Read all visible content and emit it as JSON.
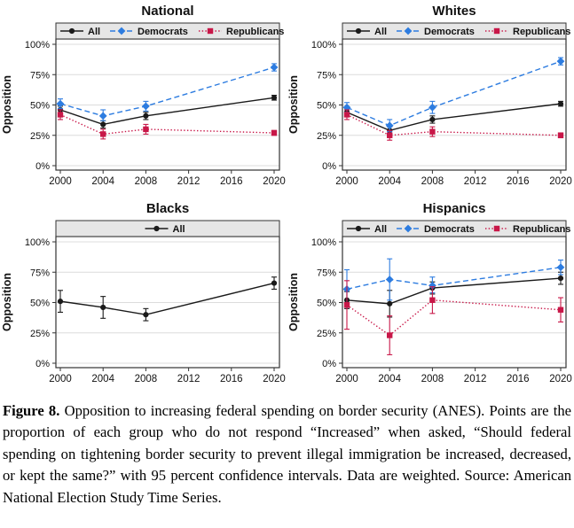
{
  "figure": {
    "caption_label": "Figure 8.",
    "caption_text": "Opposition to increasing federal spending on border security (ANES). Points are the proportion of each group who do not respond “Increased” when asked, “Should federal spending on tightening border security to prevent illegal immigration be increased, decreased, or kept the same?” with 95 percent confidence intervals. Data are weighted. Source: American National Election Study Time Series."
  },
  "colors": {
    "all": "#1a1a1a",
    "democrats": "#2d7ce0",
    "republicans": "#c81748",
    "legend_bg": "#e6e6e6",
    "grid": "#dcdcdc",
    "axis": "#333333"
  },
  "chart_data": [
    {
      "type": "line",
      "title": "National",
      "ylabel": "Opposition",
      "ylim": [
        0,
        100
      ],
      "grid": true,
      "legend_position": "top",
      "x": [
        2000,
        2004,
        2008,
        2020
      ],
      "xticks": [
        2000,
        2004,
        2008,
        2012,
        2016,
        2020
      ],
      "yticks": [
        0,
        25,
        50,
        75,
        100
      ],
      "ytick_labels": [
        "0%",
        "25%",
        "50%",
        "75%",
        "100%"
      ],
      "series": [
        {
          "name": "All",
          "key": "all",
          "marker": "circle",
          "line": "solid",
          "values": [
            46,
            34,
            41,
            56
          ],
          "ci_low": [
            43,
            31,
            38,
            54
          ],
          "ci_high": [
            49,
            37,
            44,
            58
          ]
        },
        {
          "name": "Democrats",
          "key": "democrats",
          "marker": "diamond",
          "line": "dashed",
          "values": [
            51,
            41,
            49,
            81
          ],
          "ci_low": [
            47,
            37,
            45,
            78
          ],
          "ci_high": [
            55,
            46,
            53,
            84
          ]
        },
        {
          "name": "Republicans",
          "key": "republicans",
          "marker": "square",
          "line": "dotted",
          "values": [
            42,
            26,
            30,
            27
          ],
          "ci_low": [
            38,
            22,
            26,
            25
          ],
          "ci_high": [
            46,
            30,
            34,
            29
          ]
        }
      ]
    },
    {
      "type": "line",
      "title": "Whites",
      "ylabel": "Opposition",
      "ylim": [
        0,
        100
      ],
      "grid": true,
      "legend_position": "top",
      "x": [
        2000,
        2004,
        2008,
        2020
      ],
      "xticks": [
        2000,
        2004,
        2008,
        2012,
        2016,
        2020
      ],
      "yticks": [
        0,
        25,
        50,
        75,
        100
      ],
      "ytick_labels": [
        "0%",
        "25%",
        "50%",
        "75%",
        "100%"
      ],
      "series": [
        {
          "name": "All",
          "key": "all",
          "marker": "circle",
          "line": "solid",
          "values": [
            44,
            29,
            38,
            51
          ],
          "ci_low": [
            41,
            26,
            35,
            49
          ],
          "ci_high": [
            47,
            32,
            41,
            53
          ]
        },
        {
          "name": "Democrats",
          "key": "democrats",
          "marker": "diamond",
          "line": "dashed",
          "values": [
            48,
            33,
            48,
            86
          ],
          "ci_low": [
            44,
            28,
            43,
            83
          ],
          "ci_high": [
            52,
            38,
            53,
            89
          ]
        },
        {
          "name": "Republicans",
          "key": "republicans",
          "marker": "square",
          "line": "dotted",
          "values": [
            42,
            25,
            28,
            25
          ],
          "ci_low": [
            38,
            21,
            24,
            23
          ],
          "ci_high": [
            46,
            29,
            32,
            27
          ]
        }
      ]
    },
    {
      "type": "line",
      "title": "Blacks",
      "ylabel": "Opposition",
      "ylim": [
        0,
        100
      ],
      "grid": true,
      "legend_position": "top",
      "x": [
        2000,
        2004,
        2008,
        2020
      ],
      "xticks": [
        2000,
        2004,
        2008,
        2012,
        2016,
        2020
      ],
      "yticks": [
        0,
        25,
        50,
        75,
        100
      ],
      "ytick_labels": [
        "0%",
        "25%",
        "50%",
        "75%",
        "100%"
      ],
      "series": [
        {
          "name": "All",
          "key": "all",
          "marker": "circle",
          "line": "solid",
          "values": [
            51,
            46,
            40,
            66
          ],
          "ci_low": [
            42,
            37,
            35,
            61
          ],
          "ci_high": [
            60,
            55,
            45,
            71
          ]
        }
      ]
    },
    {
      "type": "line",
      "title": "Hispanics",
      "ylabel": "Opposition",
      "ylim": [
        0,
        100
      ],
      "grid": true,
      "legend_position": "top",
      "x": [
        2000,
        2004,
        2008,
        2020
      ],
      "xticks": [
        2000,
        2004,
        2008,
        2012,
        2016,
        2020
      ],
      "yticks": [
        0,
        25,
        50,
        75,
        100
      ],
      "ytick_labels": [
        "0%",
        "25%",
        "50%",
        "75%",
        "100%"
      ],
      "series": [
        {
          "name": "All",
          "key": "all",
          "marker": "circle",
          "line": "solid",
          "values": [
            52,
            49,
            62,
            70
          ],
          "ci_low": [
            45,
            38,
            57,
            65
          ],
          "ci_high": [
            59,
            60,
            67,
            75
          ]
        },
        {
          "name": "Democrats",
          "key": "democrats",
          "marker": "diamond",
          "line": "dashed",
          "values": [
            61,
            69,
            64,
            79
          ],
          "ci_low": [
            46,
            52,
            58,
            73
          ],
          "ci_high": [
            77,
            86,
            71,
            85
          ]
        },
        {
          "name": "Republicans",
          "key": "republicans",
          "marker": "square",
          "line": "dotted",
          "values": [
            48,
            23,
            52,
            44
          ],
          "ci_low": [
            28,
            7,
            41,
            34
          ],
          "ci_high": [
            68,
            39,
            63,
            54
          ]
        }
      ]
    }
  ]
}
